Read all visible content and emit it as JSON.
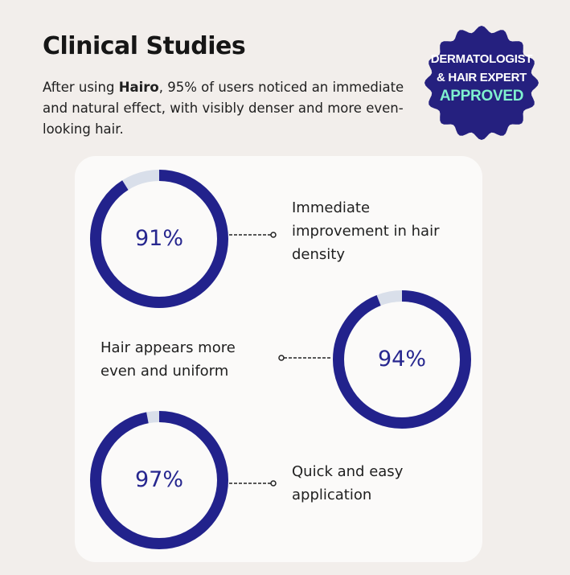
{
  "header": {
    "title": "Clinical Studies",
    "intro_before": "After using ",
    "brand": "Hairo",
    "intro_after": ", 95% of users noticed an immediate and natural effect, with visibly denser and more even-looking hair."
  },
  "badge": {
    "line1": "DERMATOLOGIST",
    "line2": "& HAIR EXPERT",
    "line3": "APPROVED"
  },
  "stats": [
    {
      "value": 91,
      "percent_label": "91%",
      "label": "Immediate improvement in hair density"
    },
    {
      "value": 94,
      "percent_label": "94%",
      "label": "Hair appears more even and uniform"
    },
    {
      "value": 97,
      "percent_label": "97%",
      "label": "Quick and easy application"
    }
  ],
  "colors": {
    "ring_fill": "#22228c",
    "ring_track": "#d9dfea",
    "badge_bg": "#25207f",
    "badge_accent": "#7ff1cf",
    "card_bg": "#fbfaf9",
    "page_bg": "#f2eeeb"
  }
}
